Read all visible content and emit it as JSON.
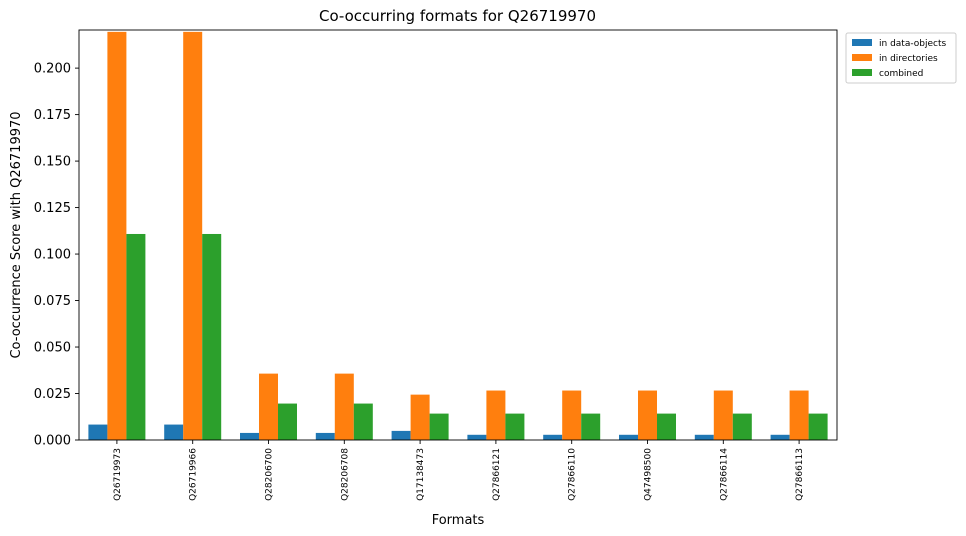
{
  "colors": {
    "in_data_objects": "#1f77b4",
    "in_directories": "#ff7f0e",
    "combined": "#2ca02c"
  },
  "chart_data": {
    "type": "bar",
    "title": "Co-occurring formats for Q26719970",
    "xlabel": "Formats",
    "ylabel": "Co-occurrence Score with Q26719970",
    "ylim": [
      0,
      0.2205
    ],
    "yticks": [
      "0.000",
      "0.025",
      "0.050",
      "0.075",
      "0.100",
      "0.125",
      "0.150",
      "0.175",
      "0.200"
    ],
    "categories": [
      "Q26719973",
      "Q26719966",
      "Q28206700",
      "Q28206708",
      "Q17138473",
      "Q27866121",
      "Q27866110",
      "Q47498500",
      "Q27866114",
      "Q27866113"
    ],
    "series": [
      {
        "name": "in data-objects",
        "values": [
          0.0083,
          0.0083,
          0.0038,
          0.0038,
          0.0049,
          0.0028,
          0.0028,
          0.0028,
          0.0028,
          0.0028
        ]
      },
      {
        "name": "in directories",
        "values": [
          0.2195,
          0.2195,
          0.0357,
          0.0357,
          0.0244,
          0.0266,
          0.0266,
          0.0266,
          0.0266,
          0.0266
        ]
      },
      {
        "name": "combined",
        "values": [
          0.1108,
          0.1108,
          0.0196,
          0.0196,
          0.0142,
          0.0142,
          0.0142,
          0.0142,
          0.0142,
          0.0142
        ]
      }
    ],
    "grid": false,
    "legend_position": "outside-top-right"
  }
}
